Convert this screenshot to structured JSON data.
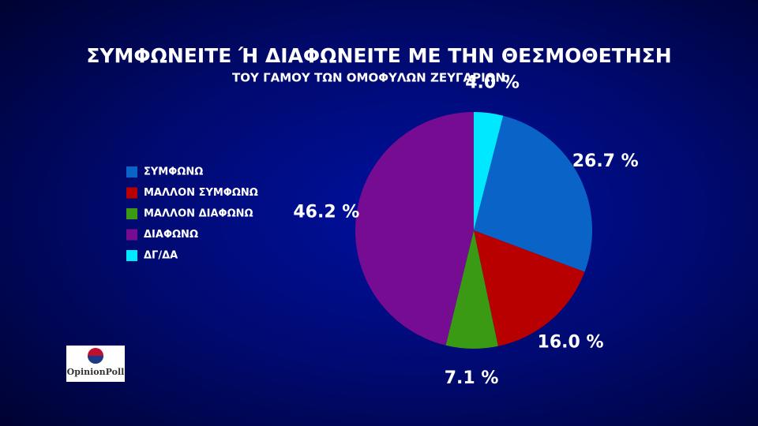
{
  "chart_data": {
    "type": "pie",
    "title": "ΣΥΜΦΩΝΕΙΤΕ Ή ΔΙΑΦΩΝΕΙΤΕ ΜΕ ΤΗΝ ΘΕΣΜΟΘΕΤΗΣΗ",
    "subtitle": "ΤΟΥ ΓΑΜΟΥ ΤΩΝ ΟΜΟΦΥΛΩΝ ΖΕΥΓΑΡΙΩΝ;",
    "categories": [
      "ΣΥΜΦΩΝΩ",
      "ΜΑΛΛΟΝ ΣΥΜΦΩΝΩ",
      "ΜΑΛΛΟΝ ΔΙΑΦΩΝΩ",
      "ΔΙΑΦΩΝΩ",
      "ΔΓ/ΔΑ"
    ],
    "values": [
      26.7,
      16.0,
      7.1,
      46.2,
      4.0
    ],
    "value_labels": [
      "26.7 %",
      "16.0 %",
      "7.1 %",
      "46.2 %",
      "4.0 %"
    ],
    "colors": [
      "#0a64c8",
      "#b80000",
      "#3a9a14",
      "#760c92",
      "#00e8ff"
    ],
    "legend": "left"
  },
  "logo": "OpinionPoll"
}
